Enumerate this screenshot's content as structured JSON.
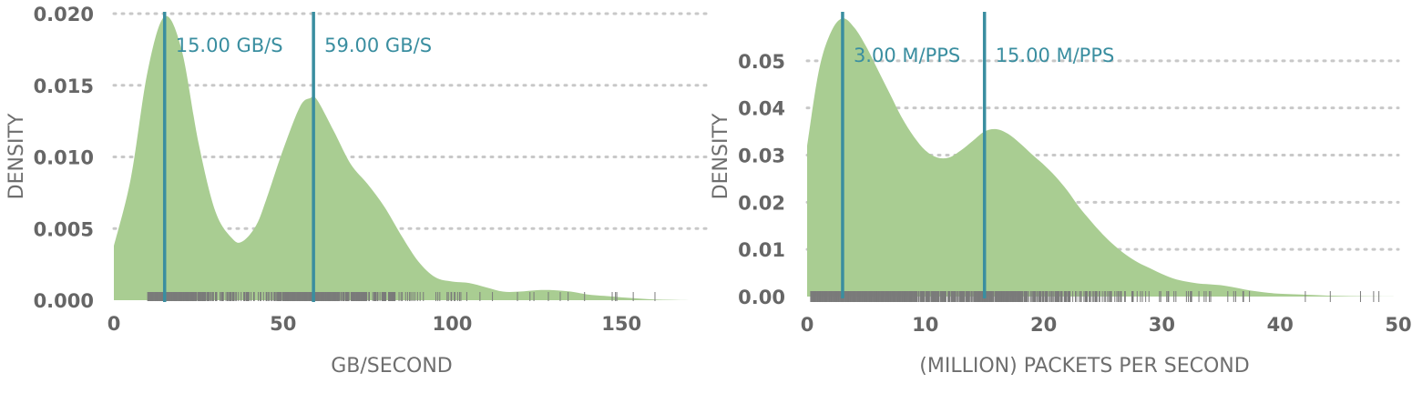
{
  "colors": {
    "density_fill": "#a9cd92",
    "marker": "#3a8ea0",
    "rug": "#7a7a7a",
    "grid": "#c8c8c8",
    "text": "#666666"
  },
  "chart_data": [
    {
      "type": "area",
      "ylabel": "DENSITY",
      "xlabel": "GB/SECOND",
      "xlim": [
        0,
        175
      ],
      "ylim": [
        0,
        0.02
      ],
      "x_ticks": [
        0,
        50,
        100,
        150
      ],
      "x_tick_labels": [
        "0",
        "50",
        "100",
        "150"
      ],
      "y_ticks": [
        0,
        0.005,
        0.01,
        0.015,
        0.02
      ],
      "y_tick_labels": [
        "0.000",
        "0.005",
        "0.010",
        "0.015",
        "0.020"
      ],
      "grid": "horizontal dotted",
      "x": [
        0,
        5,
        10,
        15,
        20,
        25,
        30,
        35,
        38,
        42,
        45,
        50,
        55,
        58,
        60,
        65,
        70,
        75,
        80,
        85,
        90,
        95,
        100,
        105,
        110,
        115,
        120,
        125,
        130,
        135,
        140,
        145,
        150,
        155,
        160,
        165,
        170,
        174
      ],
      "density": [
        0.0038,
        0.0085,
        0.016,
        0.0198,
        0.0175,
        0.011,
        0.0062,
        0.0043,
        0.0041,
        0.0052,
        0.007,
        0.0105,
        0.0135,
        0.0141,
        0.014,
        0.0118,
        0.0095,
        0.0081,
        0.0065,
        0.0045,
        0.0027,
        0.0016,
        0.0013,
        0.0012,
        0.0009,
        0.0006,
        0.0006,
        0.0007,
        0.0007,
        0.0006,
        0.0004,
        0.0003,
        0.0002,
        0.00012,
        5e-05,
        2e-05,
        0.0,
        0.0
      ],
      "markers": [
        {
          "x": 15,
          "label": "15.00 GB/S"
        },
        {
          "x": 59,
          "label": "59.00 GB/S"
        }
      ],
      "rug_range": [
        10,
        160
      ]
    },
    {
      "type": "area",
      "ylabel": "DENSITY",
      "xlabel": "(MILLION) PACKETS PER SECOND",
      "xlim": [
        0,
        50
      ],
      "ylim": [
        0,
        0.06
      ],
      "x_ticks": [
        0,
        10,
        20,
        30,
        40,
        50
      ],
      "x_tick_labels": [
        "0",
        "10",
        "20",
        "30",
        "40",
        "50"
      ],
      "y_ticks": [
        0,
        0.01,
        0.02,
        0.03,
        0.04,
        0.05
      ],
      "y_tick_labels": [
        "0.00",
        "0.01",
        "0.02",
        "0.03",
        "0.04",
        "0.05"
      ],
      "grid": "horizontal dotted",
      "x": [
        0,
        1,
        2,
        3,
        4,
        5,
        6,
        7,
        8,
        9,
        10,
        11,
        12,
        13,
        14,
        15,
        16,
        17,
        18,
        19,
        20,
        21,
        22,
        23,
        24,
        25,
        26,
        27,
        28,
        29,
        30,
        31,
        32,
        33,
        34,
        35,
        36,
        37,
        38,
        39,
        40,
        42,
        44,
        46,
        48,
        50
      ],
      "density": [
        0.032,
        0.048,
        0.056,
        0.059,
        0.057,
        0.053,
        0.048,
        0.043,
        0.038,
        0.034,
        0.031,
        0.0295,
        0.0295,
        0.031,
        0.033,
        0.035,
        0.0355,
        0.0345,
        0.0325,
        0.0302,
        0.028,
        0.0255,
        0.0225,
        0.019,
        0.016,
        0.0132,
        0.0108,
        0.0088,
        0.0072,
        0.006,
        0.0048,
        0.0038,
        0.0032,
        0.0028,
        0.0026,
        0.0024,
        0.002,
        0.0015,
        0.0011,
        0.0008,
        0.0006,
        0.0004,
        0.0002,
        0.0001,
        5e-05,
        0.0
      ],
      "markers": [
        {
          "x": 3,
          "label": "3.00 M/PPS"
        },
        {
          "x": 15,
          "label": "15.00 M/PPS"
        }
      ],
      "rug_range": [
        0.3,
        49.5
      ]
    }
  ]
}
